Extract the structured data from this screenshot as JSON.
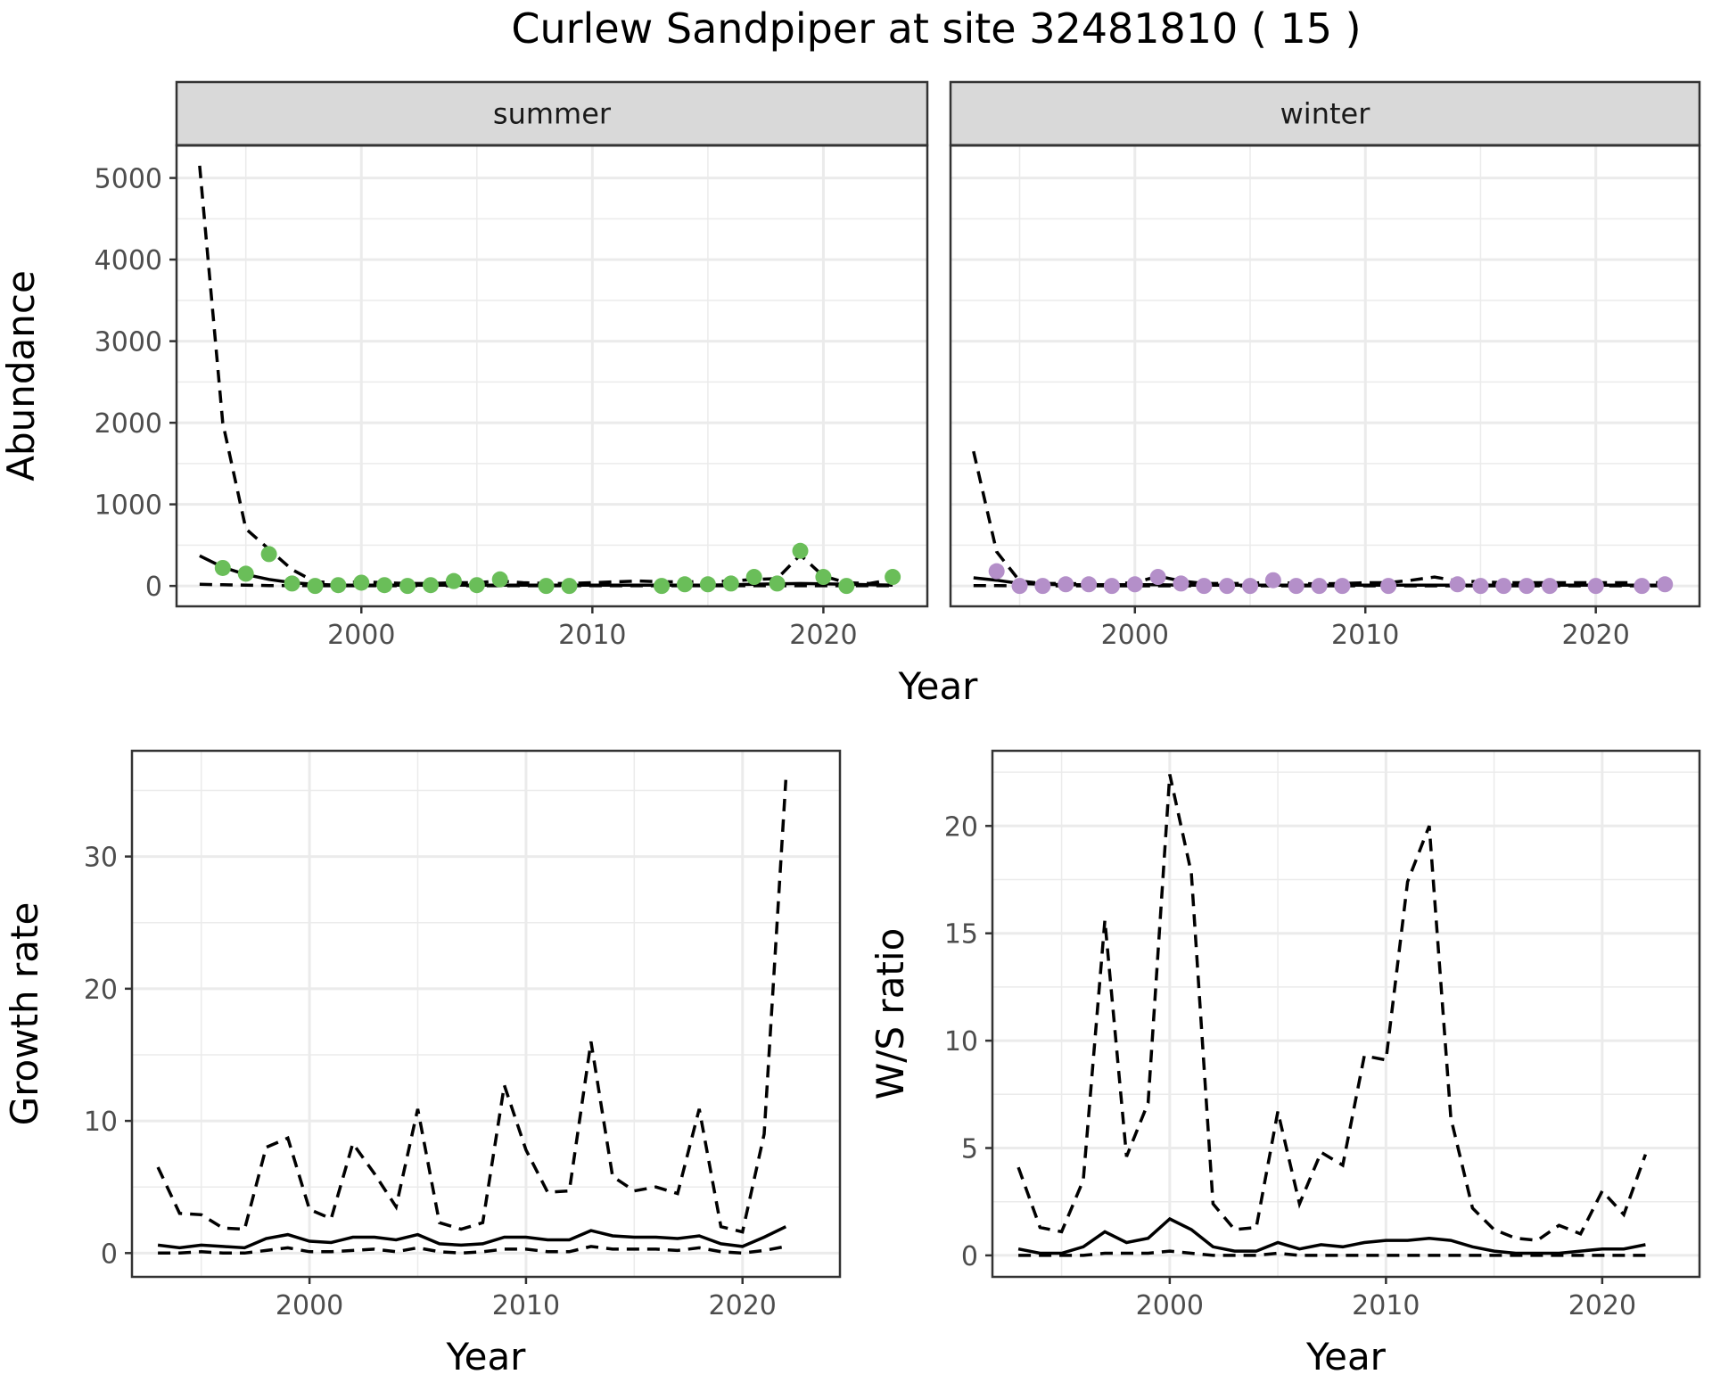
{
  "title": "Curlew Sandpiper at site 32481810 ( 15 )",
  "colors": {
    "summer_points": "#6ABE59",
    "winter_points": "#B48FC9"
  },
  "chart_data": [
    {
      "type": "line",
      "panel": "summer",
      "strip": "summer",
      "ylabel": "Abundance",
      "xlabel": "Year",
      "xlim": [
        1992,
        2024.5
      ],
      "ylim": [
        -250,
        5400
      ],
      "x_ticks": [
        2000,
        2010,
        2020
      ],
      "y_ticks": [
        0,
        1000,
        2000,
        3000,
        4000,
        5000
      ],
      "points": {
        "name": "observed",
        "x": [
          1994,
          1995,
          1996,
          1997,
          1998,
          1999,
          2000,
          2001,
          2002,
          2003,
          2004,
          2005,
          2006,
          2008,
          2009,
          2013,
          2014,
          2015,
          2016,
          2017,
          2018,
          2019,
          2020,
          2021,
          2023
        ],
        "y": [
          220,
          150,
          390,
          30,
          0,
          10,
          40,
          10,
          0,
          10,
          60,
          10,
          80,
          0,
          0,
          0,
          20,
          20,
          30,
          110,
          30,
          430,
          110,
          0,
          110
        ]
      },
      "series": [
        {
          "name": "mean",
          "style": "solid",
          "x": [
            1993,
            1994,
            1995,
            1996,
            1997,
            1998,
            1999,
            2000,
            2001,
            2002,
            2003,
            2004,
            2005,
            2006,
            2007,
            2008,
            2009,
            2010,
            2011,
            2012,
            2013,
            2014,
            2015,
            2016,
            2017,
            2018,
            2019,
            2020,
            2021,
            2022,
            2023
          ],
          "y": [
            370,
            230,
            140,
            80,
            40,
            20,
            10,
            10,
            10,
            10,
            10,
            10,
            10,
            10,
            10,
            10,
            10,
            10,
            10,
            10,
            10,
            10,
            10,
            15,
            20,
            25,
            30,
            25,
            20,
            15,
            10
          ]
        },
        {
          "name": "upper",
          "style": "dashed",
          "x": [
            1993,
            1994,
            1995,
            1996,
            1997,
            1998,
            1999,
            2000,
            2001,
            2002,
            2003,
            2004,
            2005,
            2006,
            2007,
            2008,
            2009,
            2010,
            2011,
            2012,
            2013,
            2014,
            2015,
            2016,
            2017,
            2018,
            2019,
            2020,
            2021,
            2022,
            2023
          ],
          "y": [
            5150,
            2000,
            700,
            450,
            200,
            50,
            40,
            50,
            40,
            30,
            30,
            40,
            40,
            60,
            40,
            30,
            30,
            40,
            50,
            60,
            50,
            50,
            50,
            60,
            80,
            90,
            380,
            120,
            40,
            30,
            80
          ]
        },
        {
          "name": "lower",
          "style": "dashed",
          "x": [
            1993,
            1994,
            1995,
            1996,
            1997,
            1998,
            1999,
            2000,
            2001,
            2002,
            2003,
            2004,
            2005,
            2006,
            2007,
            2008,
            2009,
            2010,
            2011,
            2012,
            2013,
            2014,
            2015,
            2016,
            2017,
            2018,
            2019,
            2020,
            2021,
            2022,
            2023
          ],
          "y": [
            20,
            15,
            10,
            5,
            5,
            2,
            2,
            2,
            2,
            2,
            2,
            2,
            2,
            2,
            2,
            2,
            2,
            2,
            2,
            2,
            2,
            2,
            2,
            2,
            2,
            2,
            2,
            2,
            2,
            2,
            2
          ]
        }
      ]
    },
    {
      "type": "line",
      "panel": "winter",
      "strip": "winter",
      "xlim": [
        1992,
        2024.5
      ],
      "ylim": [
        -250,
        5400
      ],
      "x_ticks": [
        2000,
        2010,
        2020
      ],
      "points": {
        "name": "observed",
        "x": [
          1994,
          1995,
          1996,
          1997,
          1998,
          1999,
          2000,
          2001,
          2002,
          2003,
          2004,
          2005,
          2006,
          2007,
          2008,
          2009,
          2011,
          2014,
          2015,
          2016,
          2017,
          2018,
          2020,
          2022,
          2023
        ],
        "y": [
          180,
          0,
          0,
          20,
          20,
          0,
          20,
          110,
          30,
          0,
          0,
          0,
          70,
          0,
          0,
          0,
          0,
          20,
          0,
          0,
          0,
          0,
          0,
          0,
          20
        ]
      },
      "series": [
        {
          "name": "mean",
          "style": "solid",
          "x": [
            1993,
            1994,
            1995,
            1996,
            1997,
            1998,
            1999,
            2000,
            2001,
            2002,
            2003,
            2004,
            2005,
            2006,
            2007,
            2008,
            2009,
            2010,
            2011,
            2012,
            2013,
            2014,
            2015,
            2016,
            2017,
            2018,
            2019,
            2020,
            2021,
            2022,
            2023
          ],
          "y": [
            100,
            70,
            30,
            20,
            15,
            15,
            15,
            15,
            15,
            10,
            10,
            10,
            10,
            10,
            10,
            10,
            10,
            10,
            10,
            10,
            10,
            10,
            10,
            10,
            10,
            10,
            10,
            10,
            10,
            10,
            10
          ]
        },
        {
          "name": "upper",
          "style": "dashed",
          "x": [
            1993,
            1994,
            1995,
            1996,
            1997,
            1998,
            1999,
            2000,
            2001,
            2002,
            2003,
            2004,
            2005,
            2006,
            2007,
            2008,
            2009,
            2010,
            2011,
            2012,
            2013,
            2014,
            2015,
            2016,
            2017,
            2018,
            2019,
            2020,
            2021,
            2022,
            2023
          ],
          "y": [
            1650,
            420,
            60,
            30,
            30,
            25,
            25,
            40,
            120,
            60,
            30,
            30,
            30,
            50,
            30,
            25,
            30,
            40,
            40,
            70,
            110,
            60,
            50,
            40,
            40,
            40,
            40,
            40,
            40,
            40,
            40
          ]
        },
        {
          "name": "lower",
          "style": "dashed",
          "x": [
            1993,
            1994,
            1995,
            1996,
            1997,
            1998,
            1999,
            2000,
            2001,
            2002,
            2003,
            2004,
            2005,
            2006,
            2007,
            2008,
            2009,
            2010,
            2011,
            2012,
            2013,
            2014,
            2015,
            2016,
            2017,
            2018,
            2019,
            2020,
            2021,
            2022,
            2023
          ],
          "y": [
            5,
            3,
            2,
            1,
            1,
            1,
            1,
            1,
            1,
            1,
            1,
            1,
            1,
            1,
            1,
            1,
            1,
            1,
            1,
            1,
            1,
            1,
            1,
            1,
            1,
            1,
            1,
            1,
            1,
            1,
            1
          ]
        }
      ]
    },
    {
      "type": "line",
      "panel": "growth",
      "ylabel": "Growth rate",
      "xlabel": "Year",
      "xlim": [
        1991.8,
        2024.5
      ],
      "ylim": [
        -1.8,
        38
      ],
      "x_ticks": [
        2000,
        2010,
        2020
      ],
      "y_ticks": [
        0,
        10,
        20,
        30
      ],
      "series": [
        {
          "name": "mean",
          "style": "solid",
          "x": [
            1993,
            1994,
            1995,
            1996,
            1997,
            1998,
            1999,
            2000,
            2001,
            2002,
            2003,
            2004,
            2005,
            2006,
            2007,
            2008,
            2009,
            2010,
            2011,
            2012,
            2013,
            2014,
            2015,
            2016,
            2017,
            2018,
            2019,
            2020,
            2021,
            2022
          ],
          "y": [
            0.6,
            0.4,
            0.6,
            0.5,
            0.4,
            1.1,
            1.4,
            0.9,
            0.8,
            1.2,
            1.2,
            1.0,
            1.4,
            0.7,
            0.6,
            0.7,
            1.2,
            1.2,
            1.0,
            1.0,
            1.7,
            1.3,
            1.2,
            1.2,
            1.1,
            1.3,
            0.7,
            0.5,
            1.2,
            2.0
          ]
        },
        {
          "name": "upper",
          "style": "dashed",
          "x": [
            1993,
            1994,
            1995,
            1996,
            1997,
            1998,
            1999,
            2000,
            2001,
            2002,
            2003,
            2004,
            2005,
            2006,
            2007,
            2008,
            2009,
            2010,
            2011,
            2012,
            2013,
            2014,
            2015,
            2016,
            2017,
            2018,
            2019,
            2020,
            2021,
            2022
          ],
          "y": [
            6.5,
            3.0,
            2.9,
            1.9,
            1.8,
            8.0,
            8.7,
            3.3,
            2.6,
            8.3,
            6.0,
            3.5,
            10.9,
            2.3,
            1.8,
            2.3,
            12.7,
            7.8,
            4.6,
            4.7,
            16.0,
            5.8,
            4.7,
            5.0,
            4.5,
            10.9,
            2.0,
            1.6,
            9.0,
            35.8
          ]
        },
        {
          "name": "lower",
          "style": "dashed",
          "x": [
            1993,
            1994,
            1995,
            1996,
            1997,
            1998,
            1999,
            2000,
            2001,
            2002,
            2003,
            2004,
            2005,
            2006,
            2007,
            2008,
            2009,
            2010,
            2011,
            2012,
            2013,
            2014,
            2015,
            2016,
            2017,
            2018,
            2019,
            2020,
            2021,
            2022
          ],
          "y": [
            0.0,
            0.0,
            0.1,
            0.0,
            0.0,
            0.2,
            0.4,
            0.1,
            0.1,
            0.2,
            0.3,
            0.1,
            0.4,
            0.1,
            0.0,
            0.1,
            0.3,
            0.3,
            0.1,
            0.1,
            0.5,
            0.3,
            0.3,
            0.3,
            0.2,
            0.4,
            0.1,
            0.0,
            0.2,
            0.5
          ]
        }
      ]
    },
    {
      "type": "line",
      "panel": "ratio",
      "ylabel": "W/S ratio",
      "xlabel": "Year",
      "xlim": [
        1991.8,
        2024.5
      ],
      "ylim": [
        -1.0,
        23.5
      ],
      "x_ticks": [
        2000,
        2010,
        2020
      ],
      "y_ticks": [
        0,
        5,
        10,
        15,
        20
      ],
      "series": [
        {
          "name": "mean",
          "style": "solid",
          "x": [
            1993,
            1994,
            1995,
            1996,
            1997,
            1998,
            1999,
            2000,
            2001,
            2002,
            2003,
            2004,
            2005,
            2006,
            2007,
            2008,
            2009,
            2010,
            2011,
            2012,
            2013,
            2014,
            2015,
            2016,
            2017,
            2018,
            2019,
            2020,
            2021,
            2022
          ],
          "y": [
            0.3,
            0.1,
            0.1,
            0.4,
            1.1,
            0.6,
            0.8,
            1.7,
            1.2,
            0.4,
            0.2,
            0.2,
            0.6,
            0.3,
            0.5,
            0.4,
            0.6,
            0.7,
            0.7,
            0.8,
            0.7,
            0.4,
            0.2,
            0.1,
            0.1,
            0.1,
            0.2,
            0.3,
            0.3,
            0.5
          ]
        },
        {
          "name": "upper",
          "style": "dashed",
          "x": [
            1993,
            1994,
            1995,
            1996,
            1997,
            1998,
            1999,
            2000,
            2001,
            2002,
            2003,
            2004,
            2005,
            2006,
            2007,
            2008,
            2009,
            2010,
            2011,
            2012,
            2013,
            2014,
            2015,
            2016,
            2017,
            2018,
            2019,
            2020,
            2021,
            2022
          ],
          "y": [
            4.1,
            1.3,
            1.1,
            3.5,
            15.6,
            4.6,
            7.1,
            22.4,
            17.8,
            2.4,
            1.2,
            1.3,
            6.7,
            2.4,
            4.8,
            4.2,
            9.3,
            9.1,
            17.4,
            20.0,
            6.4,
            2.2,
            1.2,
            0.8,
            0.7,
            1.4,
            1.0,
            3.0,
            1.9,
            4.7
          ]
        },
        {
          "name": "lower",
          "style": "dashed",
          "x": [
            1993,
            1994,
            1995,
            1996,
            1997,
            1998,
            1999,
            2000,
            2001,
            2002,
            2003,
            2004,
            2005,
            2006,
            2007,
            2008,
            2009,
            2010,
            2011,
            2012,
            2013,
            2014,
            2015,
            2016,
            2017,
            2018,
            2019,
            2020,
            2021,
            2022
          ],
          "y": [
            0.0,
            0.0,
            0.0,
            0.0,
            0.1,
            0.1,
            0.1,
            0.2,
            0.1,
            0.0,
            0.0,
            0.0,
            0.1,
            0.0,
            0.0,
            0.0,
            0.0,
            0.0,
            0.0,
            0.0,
            0.0,
            0.0,
            0.0,
            0.0,
            0.0,
            0.0,
            0.0,
            0.0,
            0.0,
            0.0
          ]
        }
      ]
    }
  ]
}
